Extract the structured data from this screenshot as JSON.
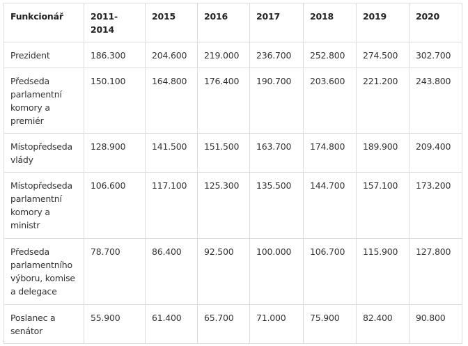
{
  "table": {
    "headers": [
      "Funkcionář",
      "2011-\n2014",
      "2015",
      "2016",
      "2017",
      "2018",
      "2019",
      "2020"
    ],
    "rows": [
      {
        "label": "Prezident",
        "values": [
          "186.300",
          "204.600",
          "219.000",
          "236.700",
          "252.800",
          "274.500",
          "302.700"
        ]
      },
      {
        "label": "Předseda parlamentní komory a premiér",
        "values": [
          "150.100",
          "164.800",
          "176.400",
          "190.700",
          "203.600",
          "221.200",
          "243.800"
        ]
      },
      {
        "label": "Místopředseda vlády",
        "values": [
          "128.900",
          "141.500",
          "151.500",
          "163.700",
          "174.800",
          "189.900",
          "209.400"
        ]
      },
      {
        "label": "Místopředseda parlamentní komory a ministr",
        "values": [
          "106.600",
          "117.100",
          "125.300",
          "135.500",
          "144.700",
          "157.100",
          "173.200"
        ]
      },
      {
        "label": "Předseda parlamentního výboru, komise a delegace",
        "values": [
          "78.700",
          "86.400",
          "92.500",
          "100.000",
          "106.700",
          "115.900",
          "127.800"
        ]
      },
      {
        "label": "Poslanec a senátor",
        "values": [
          "55.900",
          "61.400",
          "65.700",
          "71.000",
          "75.900",
          "82.400",
          "90.800"
        ]
      }
    ]
  }
}
